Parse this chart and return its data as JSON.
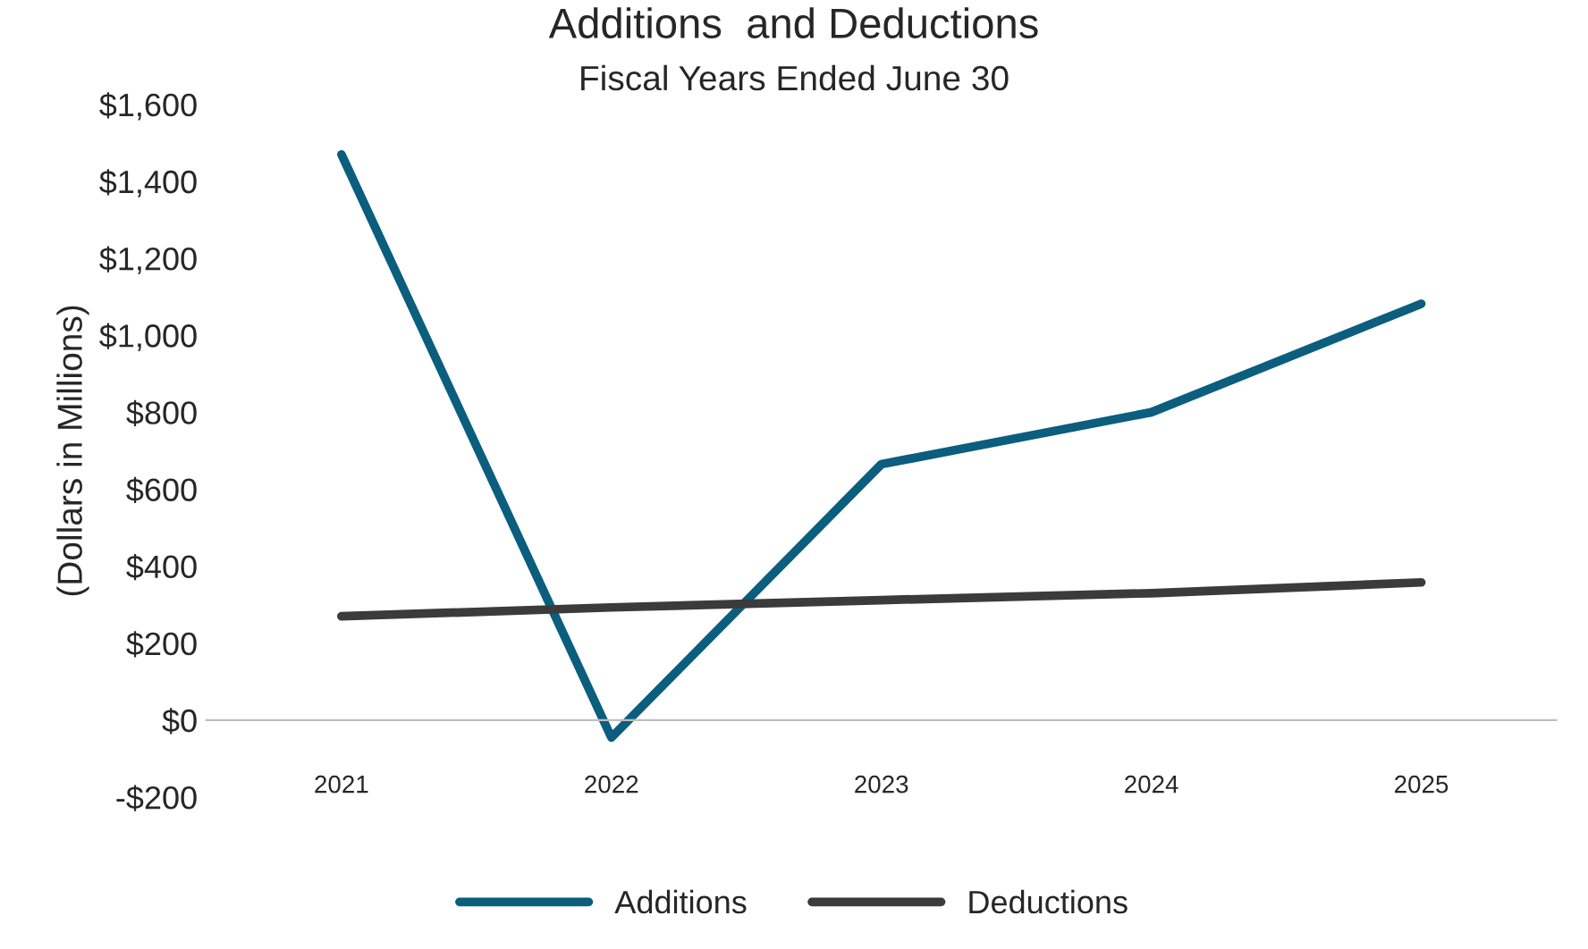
{
  "chart_data": {
    "type": "line",
    "title": "Additions  and Deductions",
    "subtitle": "Fiscal Years Ended June 30",
    "ylabel": "(Dollars in Millions)",
    "categories": [
      "2021",
      "2022",
      "2023",
      "2024",
      "2025"
    ],
    "series": [
      {
        "name": "Additions",
        "color": "#0b5e7d",
        "values": [
          1470,
          -45,
          665,
          800,
          1082
        ]
      },
      {
        "name": "Deductions",
        "color": "#3b3b3b",
        "values": [
          270,
          293,
          312,
          330,
          358
        ]
      }
    ],
    "ylim": [
      -200,
      1600
    ],
    "yticks": [
      {
        "value": -200,
        "label": "-$200"
      },
      {
        "value": 0,
        "label": "$0"
      },
      {
        "value": 200,
        "label": "$200"
      },
      {
        "value": 400,
        "label": "$400"
      },
      {
        "value": 600,
        "label": "$600"
      },
      {
        "value": 800,
        "label": "$800"
      },
      {
        "value": 1000,
        "label": "$1,000"
      },
      {
        "value": 1200,
        "label": "$1,200"
      },
      {
        "value": 1400,
        "label": "$1,400"
      },
      {
        "value": 1600,
        "label": "$1,600"
      }
    ],
    "grid": false,
    "legend": "bottom",
    "marker": "none",
    "line_style": "solid"
  }
}
